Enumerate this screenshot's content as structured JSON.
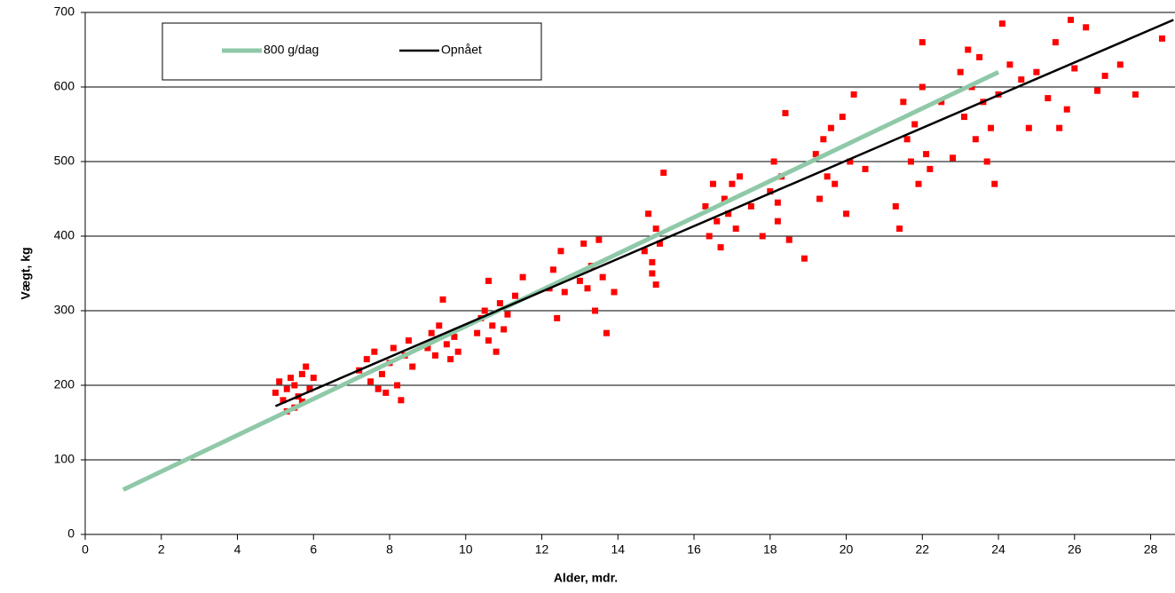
{
  "chart_data": {
    "type": "scatter",
    "xlabel": "Alder,  mdr.",
    "ylabel": "Vægt, kg",
    "xlim": [
      0,
      28.64
    ],
    "xticks": [
      0,
      2,
      4,
      6,
      8,
      10,
      12,
      14,
      16,
      18,
      20,
      22,
      24,
      26,
      28
    ],
    "ylim": [
      0,
      700
    ],
    "yticks": [
      0,
      100,
      200,
      300,
      400,
      500,
      600,
      700
    ],
    "grid": true,
    "legend": "upper left",
    "series": [
      {
        "kind": "scatter",
        "color": "#ff0000",
        "x": [
          5.0,
          5.1,
          5.2,
          5.3,
          5.4,
          5.5,
          5.5,
          5.6,
          5.7,
          5.8,
          5.9,
          6.0,
          5.3,
          5.7,
          7.2,
          7.4,
          7.5,
          7.6,
          7.8,
          7.9,
          8.0,
          8.1,
          8.2,
          8.3,
          8.4,
          8.5,
          8.6,
          7.7,
          9.0,
          9.1,
          9.2,
          9.3,
          9.5,
          9.6,
          9.7,
          9.4,
          9.8,
          10.3,
          10.4,
          10.5,
          10.6,
          10.7,
          10.8,
          10.9,
          11.0,
          11.1,
          11.3,
          11.5,
          10.6,
          12.2,
          12.3,
          12.4,
          12.5,
          12.6,
          13.0,
          13.1,
          13.2,
          13.3,
          13.4,
          13.5,
          13.6,
          13.7,
          13.9,
          14.7,
          14.8,
          14.9,
          15.0,
          15.1,
          15.2,
          15.0,
          14.9,
          16.3,
          16.4,
          16.5,
          16.6,
          16.7,
          16.8,
          16.9,
          17.0,
          17.1,
          17.2,
          17.5,
          17.8,
          18.0,
          18.1,
          18.2,
          18.3,
          18.4,
          18.5,
          18.2,
          18.9,
          19.2,
          19.3,
          19.4,
          19.5,
          19.6,
          19.7,
          19.9,
          20.0,
          20.1,
          20.2,
          20.5,
          21.3,
          21.4,
          21.5,
          21.6,
          21.7,
          21.8,
          21.9,
          22.0,
          22.1,
          22.2,
          22.0,
          22.5,
          22.8,
          23.0,
          23.1,
          23.2,
          23.3,
          23.4,
          23.5,
          23.6,
          23.7,
          23.8,
          23.9,
          24.0,
          24.1,
          24.3,
          24.6,
          24.8,
          25.0,
          25.3,
          25.5,
          25.6,
          25.8,
          25.9,
          26.0,
          26.3,
          26.6,
          26.8,
          27.2,
          27.6,
          28.3
        ],
        "values": [
          190,
          205,
          180,
          195,
          210,
          170,
          200,
          185,
          215,
          225,
          195,
          210,
          165,
          178,
          220,
          235,
          205,
          245,
          215,
          190,
          230,
          250,
          200,
          180,
          240,
          260,
          225,
          195,
          250,
          270,
          240,
          280,
          255,
          235,
          265,
          315,
          245,
          270,
          290,
          300,
          260,
          280,
          245,
          310,
          275,
          295,
          320,
          345,
          340,
          330,
          355,
          290,
          380,
          325,
          340,
          390,
          330,
          360,
          300,
          395,
          345,
          270,
          325,
          380,
          430,
          350,
          410,
          390,
          485,
          335,
          365,
          440,
          400,
          470,
          420,
          385,
          450,
          430,
          470,
          410,
          480,
          440,
          400,
          460,
          500,
          420,
          480,
          565,
          395,
          445,
          370,
          510,
          450,
          530,
          480,
          545,
          470,
          560,
          430,
          500,
          590,
          490,
          440,
          410,
          580,
          530,
          500,
          550,
          470,
          600,
          510,
          490,
          660,
          580,
          505,
          620,
          560,
          650,
          600,
          530,
          640,
          580,
          500,
          545,
          470,
          590,
          685,
          630,
          610,
          545,
          620,
          585,
          660,
          545,
          570,
          690,
          625,
          680,
          595,
          615,
          630,
          590,
          665
        ]
      },
      {
        "kind": "line",
        "name": "800 g/dag",
        "color": "#8fc9a8",
        "x": [
          1,
          24
        ],
        "values": [
          60,
          620
        ]
      },
      {
        "kind": "line",
        "name": "Opnået",
        "color": "#000000",
        "x": [
          5,
          28.6
        ],
        "values": [
          172,
          690
        ]
      }
    ]
  }
}
